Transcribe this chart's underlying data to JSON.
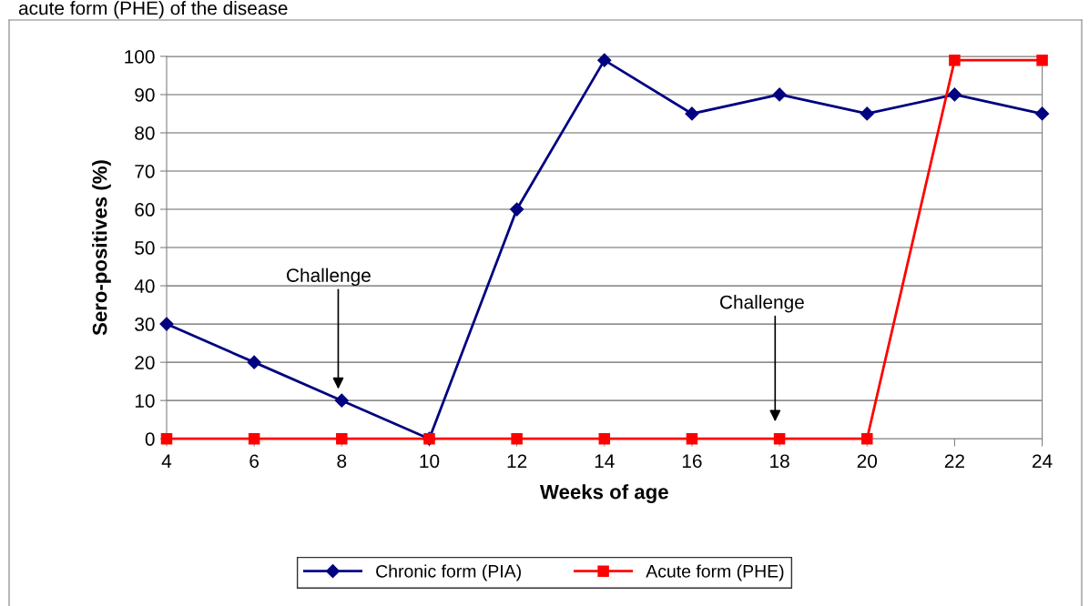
{
  "chart_data": {
    "type": "line",
    "xlabel": "Weeks of age",
    "ylabel": "Sero-positives (%)",
    "x": [
      4,
      6,
      8,
      10,
      12,
      14,
      16,
      18,
      20,
      22,
      24
    ],
    "series": [
      {
        "name": "Chronic form (PIA)",
        "color": "#000080",
        "marker": "diamond",
        "values": [
          30,
          20,
          10,
          0,
          60,
          99,
          85,
          90,
          85,
          90,
          85
        ]
      },
      {
        "name": "Acute form (PHE)",
        "color": "#ff0000",
        "marker": "square",
        "values": [
          0,
          0,
          0,
          0,
          0,
          0,
          0,
          0,
          0,
          99,
          99
        ]
      }
    ],
    "xlim": [
      4,
      24
    ],
    "xticks": [
      4,
      6,
      8,
      10,
      12,
      14,
      16,
      18,
      20,
      22,
      24
    ],
    "ylim": [
      0,
      100
    ],
    "yticks": [
      0,
      10,
      20,
      30,
      40,
      50,
      60,
      70,
      80,
      90,
      100
    ],
    "grid": "y",
    "legend": "bottom",
    "line_style": "solid",
    "annotations": [
      "acute form (PHE) of the disease",
      "Challenge",
      "Challenge"
    ]
  }
}
